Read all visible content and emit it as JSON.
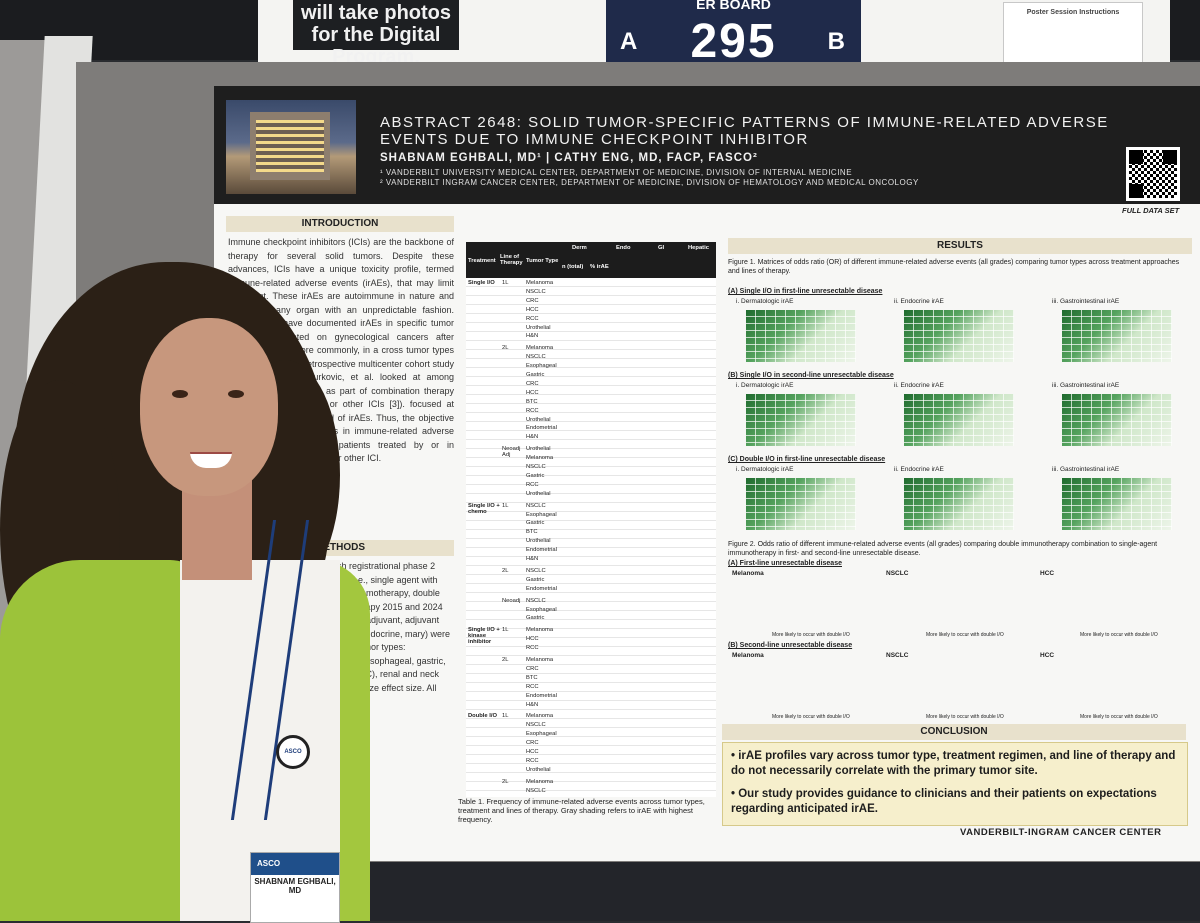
{
  "signage": {
    "photo_notice": "will take photos for the Digital Program.",
    "board_caption": "ER BOARD",
    "board_number": "295",
    "board_side_a": "A",
    "board_side_b": "B",
    "instructions_title": "Poster Session Instructions"
  },
  "poster": {
    "title": "ABSTRACT 2648: SOLID TUMOR-SPECIFIC PATTERNS OF IMMUNE-RELATED ADVERSE EVENTS DUE TO IMMUNE CHECKPOINT INHIBITOR",
    "authors": "SHABNAM EGHBALI, MD¹ | CATHY ENG, MD, FACP, FASCO²",
    "affiliation_1": "¹ VANDERBILT UNIVERSITY MEDICAL CENTER, DEPARTMENT OF MEDICINE, DIVISION OF INTERNAL MEDICINE",
    "affiliation_2": "² VANDERBILT INGRAM CANCER CENTER, DEPARTMENT OF MEDICINE, DIVISION OF HEMATOLOGY AND MEDICAL ONCOLOGY",
    "qr_label": "FULL DATA SET",
    "introduction": {
      "heading": "INTRODUCTION",
      "text": "Immune checkpoint inhibitors (ICIs) are the backbone of therapy for several solid tumors. Despite these advances, ICIs have a unique toxicity profile, termed immune-related adverse events (irAEs), that may limit treatment. These irAEs are autoimmune in nature and can affect any organ with an unpredictable fashion. Researchers have documented irAEs in specific tumor types concentrated on gynecological cancers after analysis [1]) or, more commonly, in a cross tumor types (e.g., Zheng, et al. retrospective multicenter cohort study of irAEs [2] and Curkovic, et al. looked at among published trials of ICIs as part of combination therapy with oncogenic agents, or other ICIs [3]). focused at comparison of tumor- and of irAEs. Thus, the objective was to identify differences in immune-related adverse events solid tumors in patients treated by or in combination with inhibitor, or other ICI."
    },
    "methods": {
      "heading": "METHODS",
      "text": "english registrational phase 2 therapy (i.e., single agent with I/O plus chemotherapy, double immunotherapy 2015 and 2024 for first- neoadjuvant, adjuvant histologic, endocrine, mary) were specified tumor types: melanoma, esophageal, gastric, hepatic (HCC), renal and neck (H&N). analyze effect size. All Excel."
    },
    "table": {
      "headers": [
        "Treatment",
        "Line of Therapy",
        "Tumor Type",
        "Derm",
        "Endo",
        "GI",
        "Hepatic"
      ],
      "subheaders": [
        "n (total)",
        "% irAE"
      ],
      "groups": [
        {
          "treatment": "Single I/O",
          "line": "1L",
          "tumors": [
            "Melanoma",
            "NSCLC",
            "CRC",
            "HCC",
            "RCC",
            "Urothelial",
            "H&N"
          ]
        },
        {
          "treatment": "",
          "line": "2L",
          "tumors": [
            "Melanoma",
            "NSCLC",
            "Esophageal",
            "Gastric",
            "CRC",
            "HCC",
            "BTC",
            "RCC",
            "Urothelial",
            "Endometrial",
            "H&N"
          ]
        },
        {
          "treatment": "",
          "line": "Neoadj Adj",
          "tumors": [
            "Urothelial",
            "Melanoma",
            "NSCLC",
            "Gastric",
            "RCC",
            "Urothelial"
          ]
        },
        {
          "treatment": "Single I/O + chemo",
          "line": "1L",
          "tumors": [
            "NSCLC",
            "Esophageal",
            "Gastric",
            "BTC",
            "Urothelial",
            "Endometrial",
            "H&N"
          ]
        },
        {
          "treatment": "",
          "line": "2L",
          "tumors": [
            "NSCLC",
            "Gastric",
            "Endometrial"
          ]
        },
        {
          "treatment": "",
          "line": "Neoadj",
          "tumors": [
            "NSCLC",
            "Esophageal",
            "Gastric"
          ]
        },
        {
          "treatment": "Single I/O + kinase inhibitor",
          "line": "1L",
          "tumors": [
            "Melanoma",
            "HCC",
            "RCC"
          ]
        },
        {
          "treatment": "",
          "line": "2L",
          "tumors": [
            "Melanoma",
            "CRC",
            "BTC",
            "RCC",
            "Endometrial",
            "H&N"
          ]
        },
        {
          "treatment": "Double I/O",
          "line": "1L",
          "tumors": [
            "Melanoma",
            "NSCLC",
            "Esophageal",
            "CRC",
            "HCC",
            "RCC",
            "Urothelial"
          ]
        },
        {
          "treatment": "",
          "line": "2L",
          "tumors": [
            "Melanoma",
            "NSCLC",
            "HCC"
          ]
        }
      ],
      "caption": "Table 1. Frequency of immune-related adverse events across tumor types, treatment and lines of therapy. Gray shading refers to irAE with highest frequency."
    },
    "results": {
      "heading": "RESULTS",
      "figure1_caption": "Figure 1. Matrices of odds ratio (OR) of different immune-related adverse events (all grades) comparing tumor types across treatment approaches and lines of therapy.",
      "sections": [
        {
          "title": "(A) Single I/O in first-line unresectable disease",
          "panels": [
            "i. Dermatologic irAE",
            "ii. Endocrine irAE",
            "iii. Gastrointestinal irAE"
          ]
        },
        {
          "title": "(B) Single I/O in second-line unresectable disease",
          "panels": [
            "i. Dermatologic irAE",
            "ii. Endocrine irAE",
            "iii. Gastrointestinal irAE"
          ]
        },
        {
          "title": "(C) Double I/O in first-line unresectable disease",
          "panels": [
            "i. Dermatologic irAE",
            "ii. Endocrine irAE",
            "iii. Gastrointestinal irAE"
          ]
        }
      ],
      "figure2_caption": "Figure 2. Odds ratio of different immune-related adverse events (all grades) comparing double immunotherapy combination to single-agent immunotherapy in first- and second-line unresectable disease.",
      "fig2_sections": [
        "(A) First-line unresectable disease",
        "(B) Second-line unresectable disease"
      ],
      "fig2_groups": [
        "Melanoma",
        "NSCLC",
        "HCC"
      ],
      "fig2_axis_note": "More likely to occur with double I/O"
    },
    "conclusion": {
      "heading": "CONCLUSION",
      "points": [
        "irAE profiles vary across tumor type, treatment regimen, and line of therapy and do not necessarily correlate with the primary tumor site.",
        "Our study provides guidance to clinicians and their patients on expectations regarding anticipated irAE."
      ]
    },
    "footer_logo": "VANDERBILT-INGRAM CANCER CENTER"
  },
  "presenter_badge": {
    "event": "ASCO",
    "name": "SHABNAM EGHBALI, MD"
  }
}
